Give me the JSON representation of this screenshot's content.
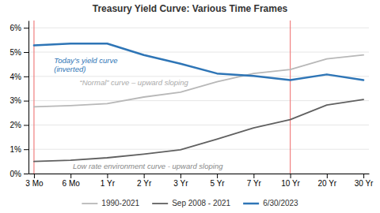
{
  "chart_data": {
    "type": "line",
    "title": "Treasury Yield Curve: Various Time Frames",
    "categories": [
      "3 Mo",
      "6 Mo",
      "1 Yr",
      "2 Yr",
      "3 Yr",
      "5 Yr",
      "7 Yr",
      "10 Yr",
      "20 Yr",
      "30 Yr"
    ],
    "series": [
      {
        "name": "1990-2021",
        "color": "#b8b8b8",
        "values": [
          2.75,
          2.8,
          2.88,
          3.15,
          3.35,
          3.78,
          4.12,
          4.28,
          4.72,
          4.88
        ]
      },
      {
        "name": "Sep 2008 - 2021",
        "color": "#606060",
        "values": [
          0.5,
          0.55,
          0.65,
          0.8,
          0.98,
          1.42,
          1.88,
          2.22,
          2.82,
          3.05
        ]
      },
      {
        "name": "6/30/2023",
        "color": "#2e75b6",
        "values": [
          5.28,
          5.35,
          5.35,
          4.88,
          4.52,
          4.12,
          4.02,
          3.85,
          4.08,
          3.85
        ]
      }
    ],
    "ylim": [
      0,
      6.3
    ],
    "yticks": [
      {
        "value": 0,
        "label": "0%"
      },
      {
        "value": 1,
        "label": "1%"
      },
      {
        "value": 2,
        "label": "2%"
      },
      {
        "value": 3,
        "label": "3%"
      },
      {
        "value": 4,
        "label": "4%"
      },
      {
        "value": 5,
        "label": "5%"
      },
      {
        "value": 6,
        "label": "6%"
      }
    ],
    "grid": true,
    "legend": "bottom",
    "annotations": [
      {
        "text": "Today’s yield curve\n(inverted)",
        "color": "#2e75b6"
      },
      {
        "text": "“Normal” curve – upward sloping",
        "color": "#aaaaaa"
      },
      {
        "text": "Low rate environment curve - upward sloping",
        "color": "#888888"
      }
    ],
    "vlines": [
      {
        "category": "3 Mo",
        "color": "#f08080"
      },
      {
        "category": "10 Yr",
        "color": "#f08080"
      }
    ]
  }
}
